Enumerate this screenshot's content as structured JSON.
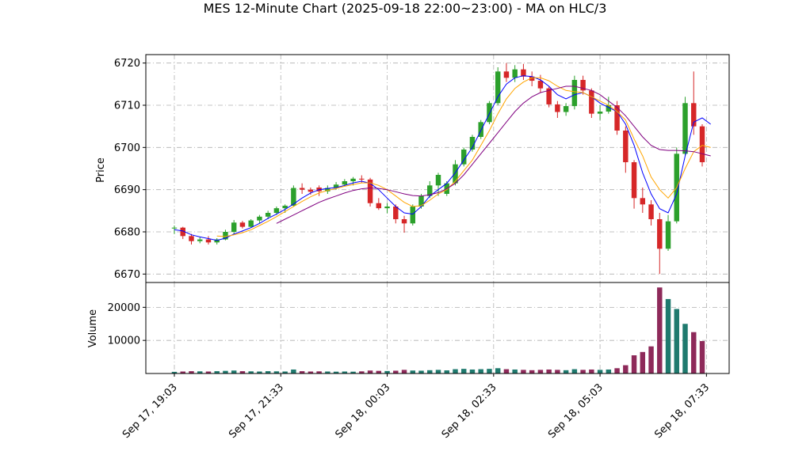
{
  "chart_data": {
    "type": "candlestick",
    "title": "MES 12-Minute Chart (2025-09-18 22:00~23:00) - MA on HLC/3",
    "price_panel": {
      "ylabel": "Price",
      "ylim": [
        6668,
        6722
      ],
      "yticks": [
        6670,
        6680,
        6690,
        6700,
        6710,
        6720
      ],
      "grid": true
    },
    "volume_panel": {
      "ylabel": "Volume",
      "ylim": [
        0,
        27500
      ],
      "yticks": [
        10000,
        20000
      ],
      "grid": true
    },
    "x_ticks": [
      {
        "index": 0,
        "label": "Sep 17, 19:03"
      },
      {
        "index": 12.5,
        "label": "Sep 17, 21:33"
      },
      {
        "index": 25,
        "label": "Sep 18, 00:03"
      },
      {
        "index": 37.5,
        "label": "Sep 18, 02:33"
      },
      {
        "index": 50,
        "label": "Sep 18, 05:03"
      },
      {
        "index": 62.5,
        "label": "Sep 18, 07:33"
      }
    ],
    "candles": [
      [
        6680.8,
        6681.5,
        6679.5,
        6681.0,
        500
      ],
      [
        6681.0,
        6681.2,
        6678.3,
        6679.0,
        600
      ],
      [
        6679.0,
        6679.5,
        6677.0,
        6677.8,
        700
      ],
      [
        6677.8,
        6678.7,
        6677.3,
        6678.2,
        650
      ],
      [
        6678.2,
        6679.0,
        6677.0,
        6677.5,
        600
      ],
      [
        6677.5,
        6678.5,
        6677.0,
        6678.2,
        700
      ],
      [
        6678.2,
        6680.5,
        6678.0,
        6680.0,
        800
      ],
      [
        6680.0,
        6682.8,
        6679.5,
        6682.2,
        900
      ],
      [
        6682.2,
        6682.6,
        6680.8,
        6681.2,
        700
      ],
      [
        6681.2,
        6683.0,
        6681.0,
        6682.7,
        650
      ],
      [
        6682.7,
        6684.0,
        6682.0,
        6683.6,
        600
      ],
      [
        6683.6,
        6685.0,
        6683.0,
        6684.5,
        700
      ],
      [
        6684.5,
        6686.0,
        6684.0,
        6685.6,
        650
      ],
      [
        6685.6,
        6686.5,
        6684.5,
        6686.2,
        600
      ],
      [
        6686.2,
        6691.0,
        6686.0,
        6690.4,
        1200
      ],
      [
        6690.4,
        6691.5,
        6689.0,
        6690.0,
        700
      ],
      [
        6690.0,
        6690.5,
        6688.8,
        6689.5,
        600
      ],
      [
        6690.5,
        6691.0,
        6688.5,
        6689.6,
        650
      ],
      [
        6689.6,
        6691.0,
        6689.0,
        6690.4,
        600
      ],
      [
        6690.4,
        6691.8,
        6690.0,
        6691.2,
        550
      ],
      [
        6691.2,
        6692.5,
        6690.8,
        6692.0,
        600
      ],
      [
        6692.0,
        6693.0,
        6691.0,
        6692.6,
        550
      ],
      [
        6692.6,
        6693.4,
        6691.6,
        6692.4,
        650
      ],
      [
        6692.4,
        6692.8,
        6686.0,
        6686.8,
        900
      ],
      [
        6686.8,
        6688.0,
        6685.2,
        6685.6,
        800
      ],
      [
        6685.6,
        6686.8,
        6684.4,
        6686.0,
        750
      ],
      [
        6686.0,
        6686.5,
        6682.0,
        6683.0,
        850
      ],
      [
        6683.0,
        6683.8,
        6679.8,
        6682.0,
        1100
      ],
      [
        6682.0,
        6686.5,
        6681.5,
        6686.0,
        900
      ],
      [
        6686.0,
        6689.0,
        6685.5,
        6688.5,
        850
      ],
      [
        6688.5,
        6692.0,
        6688.0,
        6691.0,
        1000
      ],
      [
        6691.0,
        6694.0,
        6688.5,
        6693.5,
        1100
      ],
      [
        6689.0,
        6692.0,
        6688.5,
        6691.5,
        950
      ],
      [
        6691.5,
        6697.0,
        6691.0,
        6696.0,
        1300
      ],
      [
        6696.0,
        6700.0,
        6695.5,
        6699.5,
        1400
      ],
      [
        6699.5,
        6703.0,
        6699.0,
        6702.5,
        1200
      ],
      [
        6702.5,
        6706.5,
        6702.0,
        6706.0,
        1300
      ],
      [
        6706.0,
        6711.0,
        6705.5,
        6710.5,
        1400
      ],
      [
        6710.5,
        6719.0,
        6710.0,
        6718.0,
        1600
      ],
      [
        6718.0,
        6720.0,
        6715.5,
        6716.5,
        1300
      ],
      [
        6716.5,
        6719.5,
        6715.5,
        6718.5,
        1200
      ],
      [
        6718.5,
        6719.8,
        6716.0,
        6716.8,
        1100
      ],
      [
        6716.8,
        6718.0,
        6714.5,
        6715.8,
        1000
      ],
      [
        6715.8,
        6717.2,
        6713.0,
        6714.0,
        1100
      ],
      [
        6714.0,
        6714.5,
        6709.5,
        6710.2,
        1200
      ],
      [
        6710.2,
        6711.0,
        6707.0,
        6708.4,
        1100
      ],
      [
        6708.4,
        6710.5,
        6707.5,
        6709.8,
        1000
      ],
      [
        6709.8,
        6717.0,
        6709.0,
        6716.0,
        1300
      ],
      [
        6716.0,
        6717.0,
        6712.5,
        6713.5,
        1100
      ],
      [
        6713.5,
        6714.0,
        6707.0,
        6708.0,
        1200
      ],
      [
        6708.0,
        6710.0,
        6706.5,
        6708.5,
        1100
      ],
      [
        6708.5,
        6712.0,
        6708.0,
        6710.0,
        1200
      ],
      [
        6710.0,
        6711.0,
        6703.0,
        6704.0,
        1600
      ],
      [
        6704.0,
        6705.0,
        6694.0,
        6696.5,
        2500
      ],
      [
        6696.5,
        6697.0,
        6685.5,
        6688.0,
        5500
      ],
      [
        6688.0,
        6690.5,
        6684.5,
        6686.5,
        6500
      ],
      [
        6686.5,
        6687.5,
        6681.5,
        6683.0,
        8200
      ],
      [
        6683.0,
        6684.5,
        6670.0,
        6676.0,
        26000
      ],
      [
        6676.0,
        6684.0,
        6675.5,
        6682.5,
        22500
      ],
      [
        6682.5,
        6700.0,
        6682.0,
        6698.5,
        19500
      ],
      [
        6698.5,
        6712.0,
        6698.0,
        6710.5,
        15000
      ],
      [
        6710.5,
        6718.0,
        6703.0,
        6705.0,
        12500
      ],
      [
        6705.0,
        6705.5,
        6695.5,
        6696.5,
        9800
      ]
    ],
    "ma_series": [
      {
        "color": "#0000ff",
        "values": [
          6680.5,
          6680.2,
          6679.3,
          6678.8,
          6678.4,
          6678.0,
          6678.5,
          6679.5,
          6680.2,
          6681.0,
          6682.0,
          6683.2,
          6684.2,
          6685.3,
          6686.6,
          6688.0,
          6689.2,
          6690.0,
          6690.3,
          6690.5,
          6691.0,
          6691.6,
          6692.0,
          6691.5,
          6690.0,
          6688.0,
          6686.0,
          6684.5,
          6684.2,
          6686.0,
          6688.5,
          6690.0,
          6691.5,
          6694.0,
          6697.0,
          6700.0,
          6704.0,
          6708.0,
          6712.0,
          6715.0,
          6716.5,
          6717.0,
          6716.8,
          6716.0,
          6714.5,
          6712.5,
          6711.5,
          6712.5,
          6713.0,
          6712.0,
          6710.5,
          6709.5,
          6708.5,
          6705.5,
          6700.5,
          6694.0,
          6689.0,
          6685.5,
          6684.5,
          6689.0,
          6698.0,
          6706.0,
          6707.0,
          6705.5
        ]
      },
      {
        "color": "#ffa500",
        "values": [
          null,
          null,
          null,
          null,
          null,
          6679.0,
          6678.9,
          6679.3,
          6679.8,
          6680.5,
          6681.5,
          6682.5,
          6683.6,
          6684.8,
          6686.0,
          6687.2,
          6688.3,
          6689.2,
          6689.8,
          6690.3,
          6690.8,
          6691.2,
          6691.6,
          6691.6,
          6691.0,
          6690.0,
          6688.5,
          6687.0,
          6686.0,
          6686.2,
          6687.5,
          6689.0,
          6690.0,
          6692.0,
          6694.5,
          6697.0,
          6700.5,
          6704.0,
          6708.0,
          6711.5,
          6714.0,
          6715.5,
          6716.5,
          6716.5,
          6715.8,
          6714.5,
          6713.5,
          6713.2,
          6713.0,
          6712.0,
          6711.0,
          6710.0,
          6708.5,
          6706.5,
          6702.0,
          6698.0,
          6693.0,
          6690.0,
          6688.0,
          6690.5,
          6695.0,
          6699.0,
          6700.5,
          6700.0
        ]
      },
      {
        "color": "#800080",
        "values": [
          null,
          null,
          null,
          null,
          null,
          null,
          null,
          null,
          null,
          null,
          null,
          null,
          6682.0,
          6683.0,
          6684.0,
          6685.0,
          6686.0,
          6687.0,
          6687.8,
          6688.5,
          6689.2,
          6689.8,
          6690.2,
          6690.4,
          6690.3,
          6690.0,
          6689.5,
          6689.0,
          6688.6,
          6688.5,
          6688.8,
          6689.3,
          6690.2,
          6691.5,
          6693.5,
          6696.0,
          6698.5,
          6701.0,
          6703.5,
          6706.0,
          6708.5,
          6710.5,
          6712.0,
          6713.0,
          6713.5,
          6714.0,
          6714.5,
          6714.5,
          6714.0,
          6713.5,
          6712.5,
          6711.0,
          6709.5,
          6707.5,
          6705.0,
          6702.5,
          6700.5,
          6699.5,
          6699.3,
          6699.3,
          6699.2,
          6699.0,
          6698.5,
          6698.0
        ]
      }
    ]
  }
}
